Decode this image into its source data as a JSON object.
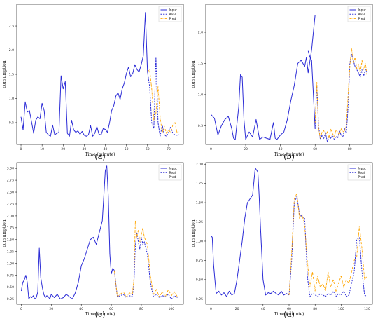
{
  "colors": {
    "input": "#2b2bd6",
    "real": "#2b2bd6",
    "pred": "#ffa500"
  },
  "chart_data": [
    {
      "type": "line",
      "panel": "a",
      "caption": "(a)",
      "xlabel": "Time (minute)",
      "ylabel": "consumption",
      "xlim": [
        -2,
        77
      ],
      "ylim": [
        0.05,
        2.95
      ],
      "xticks": [
        0,
        10,
        20,
        30,
        40,
        50,
        60,
        70
      ],
      "yticks": [
        0.5,
        1.0,
        1.5,
        2.0,
        2.5
      ],
      "ytick_labels": [
        "0.5",
        "1.0",
        "1.5",
        "2.0",
        "2.5"
      ],
      "legend": [
        "Input",
        "Real",
        "Pred"
      ],
      "legend_position": "top-right",
      "series": [
        {
          "name": "Input",
          "style": "solid",
          "x": [
            0,
            1,
            2,
            3,
            4,
            5,
            6,
            7,
            8,
            9,
            10,
            11,
            12,
            13,
            14,
            15,
            16,
            17,
            18,
            19,
            20,
            21,
            22,
            23,
            24,
            25,
            26,
            27,
            28,
            29,
            30,
            31,
            32,
            33,
            34,
            35,
            36,
            37,
            38,
            39,
            40,
            41,
            42,
            43,
            44,
            45,
            46,
            47,
            48,
            49,
            50,
            51,
            52,
            53,
            54,
            55,
            56,
            57,
            58,
            59,
            60
          ],
          "y": [
            0.62,
            0.35,
            0.93,
            0.72,
            0.75,
            0.52,
            0.28,
            0.55,
            0.62,
            0.58,
            0.9,
            0.75,
            0.3,
            0.25,
            0.22,
            0.45,
            0.25,
            0.28,
            0.3,
            1.47,
            1.2,
            1.35,
            0.28,
            0.22,
            0.55,
            0.35,
            0.3,
            0.33,
            0.26,
            0.32,
            0.24,
            0.22,
            0.25,
            0.44,
            0.22,
            0.28,
            0.42,
            0.26,
            0.25,
            0.38,
            0.36,
            0.3,
            0.5,
            0.75,
            0.85,
            1.05,
            1.12,
            0.98,
            1.2,
            1.32,
            1.52,
            1.65,
            1.45,
            1.52,
            1.7,
            1.6,
            1.55,
            1.7,
            1.88,
            2.78,
            1.55
          ]
        },
        {
          "name": "Real",
          "style": "dashed",
          "x": [
            60,
            61,
            62,
            63,
            64,
            65,
            66,
            67,
            68,
            69,
            70,
            71,
            72,
            73,
            74,
            75
          ],
          "y": [
            1.55,
            1.25,
            0.5,
            0.38,
            1.85,
            0.5,
            0.22,
            0.45,
            0.24,
            0.22,
            0.3,
            0.42,
            0.28,
            0.25,
            0.24,
            0.25
          ]
        },
        {
          "name": "Pred",
          "style": "dashdot",
          "x": [
            60,
            61,
            62,
            63,
            64,
            65,
            66,
            67,
            68,
            69,
            70,
            71,
            72,
            73,
            74,
            75
          ],
          "y": [
            1.55,
            1.6,
            1.2,
            0.55,
            0.7,
            1.25,
            0.6,
            0.3,
            0.42,
            0.28,
            0.35,
            0.3,
            0.45,
            0.5,
            0.3,
            0.32
          ]
        }
      ]
    },
    {
      "type": "line",
      "panel": "b",
      "caption": "(b)",
      "xlabel": "Time (minute)",
      "ylabel": "consumption",
      "xlim": [
        -3,
        93
      ],
      "ylim": [
        0.2,
        2.45
      ],
      "xticks": [
        0,
        20,
        40,
        60,
        80
      ],
      "yticks": [
        0.5,
        1.0,
        1.5,
        2.0
      ],
      "ytick_labels": [
        "0.5",
        "1.0",
        "1.5",
        "2.0"
      ],
      "legend": [
        "Input",
        "Real",
        "Pred"
      ],
      "legend_position": "top-right",
      "series": [
        {
          "name": "Input",
          "style": "solid",
          "x": [
            0,
            2,
            4,
            6,
            8,
            10,
            12,
            13,
            14,
            16,
            17,
            18,
            19,
            20,
            22,
            24,
            26,
            28,
            30,
            32,
            34,
            36,
            37,
            38,
            40,
            42,
            44,
            46,
            48,
            50,
            52,
            54,
            55,
            56,
            58,
            60
          ],
          "y": [
            0.68,
            0.62,
            0.35,
            0.5,
            0.6,
            0.65,
            0.45,
            0.3,
            0.28,
            0.8,
            1.32,
            1.28,
            0.6,
            0.28,
            0.4,
            0.32,
            0.6,
            0.28,
            0.32,
            0.3,
            0.28,
            0.55,
            0.3,
            0.28,
            0.35,
            0.4,
            0.6,
            0.9,
            1.15,
            1.5,
            1.55,
            1.45,
            1.6,
            1.35,
            1.72,
            2.28
          ]
        },
        {
          "name": "Input",
          "style": "solid",
          "x": [
            56,
            57,
            58,
            59,
            60
          ],
          "y": [
            1.7,
            1.6,
            1.55,
            1.0,
            0.45
          ]
        },
        {
          "name": "Real",
          "style": "dashed",
          "x": [
            60,
            61,
            62,
            63,
            64,
            65,
            66,
            67,
            68,
            69,
            70,
            71,
            72,
            73,
            74,
            75,
            76,
            77,
            78,
            79,
            80,
            81,
            82,
            83,
            84,
            85,
            86,
            87,
            88,
            89,
            90
          ],
          "y": [
            0.45,
            1.15,
            0.5,
            0.28,
            0.35,
            0.3,
            0.38,
            0.25,
            0.32,
            0.3,
            0.35,
            0.28,
            0.33,
            0.3,
            0.42,
            0.35,
            0.32,
            0.45,
            0.38,
            0.8,
            1.5,
            1.65,
            1.55,
            1.45,
            1.4,
            1.35,
            1.28,
            1.4,
            1.3,
            1.4,
            1.35
          ]
        },
        {
          "name": "Pred",
          "style": "dashdot",
          "x": [
            60,
            61,
            62,
            63,
            64,
            65,
            66,
            67,
            68,
            69,
            70,
            71,
            72,
            73,
            74,
            75,
            76,
            77,
            78,
            79,
            80,
            81,
            82,
            83,
            84,
            85,
            86,
            87,
            88,
            89,
            90
          ],
          "y": [
            0.55,
            1.2,
            0.45,
            0.3,
            0.4,
            0.42,
            0.35,
            0.4,
            0.3,
            0.45,
            0.38,
            0.32,
            0.42,
            0.4,
            0.35,
            0.45,
            0.4,
            0.42,
            0.5,
            1.0,
            1.45,
            1.75,
            1.5,
            1.6,
            1.42,
            1.48,
            1.35,
            1.55,
            1.4,
            1.5,
            1.3
          ]
        }
      ]
    },
    {
      "type": "line",
      "panel": "c",
      "caption": "(c)",
      "xlabel": "Time (minute)",
      "ylabel": "consumption",
      "xlim": [
        -3,
        108
      ],
      "ylim": [
        0.14,
        3.12
      ],
      "xticks": [
        0,
        20,
        40,
        60,
        80,
        100
      ],
      "yticks": [
        0.25,
        0.5,
        0.75,
        1.0,
        1.25,
        1.5,
        1.75,
        2.0,
        2.25,
        2.5,
        2.75,
        3.0
      ],
      "ytick_labels": [
        "0.25",
        "0.50",
        "0.75",
        "1.00",
        "1.25",
        "1.50",
        "1.75",
        "2.00",
        "2.25",
        "2.50",
        "2.75",
        "3.00"
      ],
      "legend": [
        "Input",
        "Real",
        "Pred"
      ],
      "legend_position": "top-right",
      "series": [
        {
          "name": "Input",
          "style": "solid",
          "x": [
            0,
            1,
            2,
            3,
            4,
            5,
            6,
            7,
            8,
            9,
            10,
            11,
            12,
            13,
            14,
            15,
            16,
            17,
            18,
            19,
            20,
            22,
            24,
            26,
            28,
            30,
            32,
            34,
            36,
            38,
            40,
            42,
            44,
            46,
            48,
            50,
            52,
            54,
            56,
            57,
            58,
            59,
            60,
            61,
            62
          ],
          "y": [
            0.42,
            0.6,
            0.65,
            0.75,
            0.6,
            0.25,
            0.3,
            0.28,
            0.32,
            0.25,
            0.28,
            0.4,
            1.32,
            0.7,
            0.5,
            0.35,
            0.28,
            0.32,
            0.3,
            0.25,
            0.35,
            0.28,
            0.35,
            0.25,
            0.28,
            0.35,
            0.3,
            0.25,
            0.38,
            0.6,
            0.95,
            1.1,
            1.3,
            1.5,
            1.55,
            1.4,
            1.65,
            1.9,
            2.95,
            3.05,
            2.4,
            1.2,
            0.78,
            0.9,
            0.85
          ]
        },
        {
          "name": "Real",
          "style": "dashed",
          "x": [
            62,
            64,
            66,
            68,
            70,
            72,
            74,
            75,
            76,
            77,
            78,
            79,
            80,
            81,
            82,
            84,
            86,
            88,
            90,
            92,
            94,
            96,
            98,
            100,
            102,
            104
          ],
          "y": [
            0.85,
            0.3,
            0.32,
            0.35,
            0.28,
            0.32,
            0.3,
            0.55,
            1.35,
            1.65,
            1.45,
            1.3,
            1.55,
            1.4,
            1.45,
            1.2,
            0.6,
            0.3,
            0.35,
            0.28,
            0.32,
            0.3,
            0.35,
            0.25,
            0.32,
            0.28
          ]
        },
        {
          "name": "Pred",
          "style": "dashdot",
          "x": [
            62,
            64,
            66,
            68,
            70,
            72,
            74,
            75,
            76,
            77,
            78,
            79,
            80,
            81,
            82,
            84,
            86,
            88,
            90,
            92,
            94,
            96,
            98,
            100,
            102,
            104
          ],
          "y": [
            0.85,
            0.3,
            0.35,
            0.4,
            0.3,
            0.38,
            0.35,
            0.65,
            1.9,
            1.55,
            1.7,
            1.45,
            1.6,
            1.75,
            1.55,
            1.4,
            0.75,
            0.35,
            0.45,
            0.3,
            0.4,
            0.3,
            0.45,
            0.32,
            0.4,
            0.3
          ]
        }
      ]
    },
    {
      "type": "line",
      "panel": "d",
      "caption": "(d)",
      "xlabel": "Time (minute)",
      "ylabel": "consumption",
      "xlim": [
        -4,
        124
      ],
      "ylim": [
        0.18,
        2.02
      ],
      "xticks": [
        0,
        20,
        40,
        60,
        80,
        100,
        120
      ],
      "yticks": [
        0.25,
        0.5,
        0.75,
        1.0,
        1.25,
        1.5,
        1.75,
        2.0
      ],
      "ytick_labels": [
        "0.25",
        "0.50",
        "0.75",
        "1.00",
        "1.25",
        "1.50",
        "1.75",
        "2.00"
      ],
      "legend": [
        "Input",
        "Real",
        "Pred"
      ],
      "legend_position": "top-right",
      "series": [
        {
          "name": "Input",
          "style": "solid",
          "x": [
            0,
            1,
            2,
            3,
            4,
            6,
            8,
            10,
            12,
            14,
            16,
            18,
            20,
            22,
            24,
            26,
            28,
            30,
            32,
            34,
            36,
            37,
            38,
            40,
            42,
            44,
            46,
            48,
            50,
            52,
            54,
            56,
            58,
            60
          ],
          "y": [
            1.07,
            1.05,
            0.7,
            0.5,
            0.32,
            0.35,
            0.3,
            0.33,
            0.28,
            0.35,
            0.3,
            0.32,
            0.5,
            0.75,
            1.0,
            1.3,
            1.5,
            1.55,
            1.6,
            1.95,
            1.9,
            1.6,
            1.2,
            0.5,
            0.3,
            0.33,
            0.32,
            0.35,
            0.32,
            0.3,
            0.35,
            0.3,
            0.32,
            0.3
          ]
        },
        {
          "name": "Real",
          "style": "dashed",
          "x": [
            60,
            62,
            64,
            66,
            68,
            70,
            72,
            74,
            76,
            78,
            80,
            82,
            84,
            86,
            88,
            90,
            92,
            94,
            96,
            98,
            100,
            102,
            104,
            106,
            108,
            110,
            112,
            114,
            116,
            118,
            120
          ],
          "y": [
            0.3,
            0.75,
            1.5,
            1.58,
            1.35,
            1.32,
            1.3,
            0.55,
            0.28,
            0.32,
            0.3,
            0.28,
            0.32,
            0.3,
            0.28,
            0.32,
            0.3,
            0.35,
            0.28,
            0.32,
            0.3,
            0.35,
            0.28,
            0.3,
            0.45,
            0.6,
            1.02,
            1.05,
            0.6,
            0.3,
            0.28
          ]
        },
        {
          "name": "Pred",
          "style": "dashdot",
          "x": [
            60,
            62,
            64,
            66,
            68,
            70,
            72,
            74,
            76,
            78,
            80,
            82,
            84,
            86,
            88,
            90,
            92,
            94,
            96,
            98,
            100,
            102,
            104,
            106,
            108,
            110,
            112,
            114,
            116,
            118,
            120
          ],
          "y": [
            0.3,
            0.85,
            1.55,
            1.62,
            1.3,
            1.35,
            1.2,
            0.75,
            0.4,
            0.6,
            0.35,
            0.55,
            0.4,
            0.45,
            0.35,
            0.6,
            0.4,
            0.5,
            0.35,
            0.45,
            0.55,
            0.4,
            0.5,
            0.45,
            0.6,
            0.75,
            0.8,
            1.2,
            0.9,
            0.5,
            0.55
          ]
        }
      ]
    }
  ]
}
